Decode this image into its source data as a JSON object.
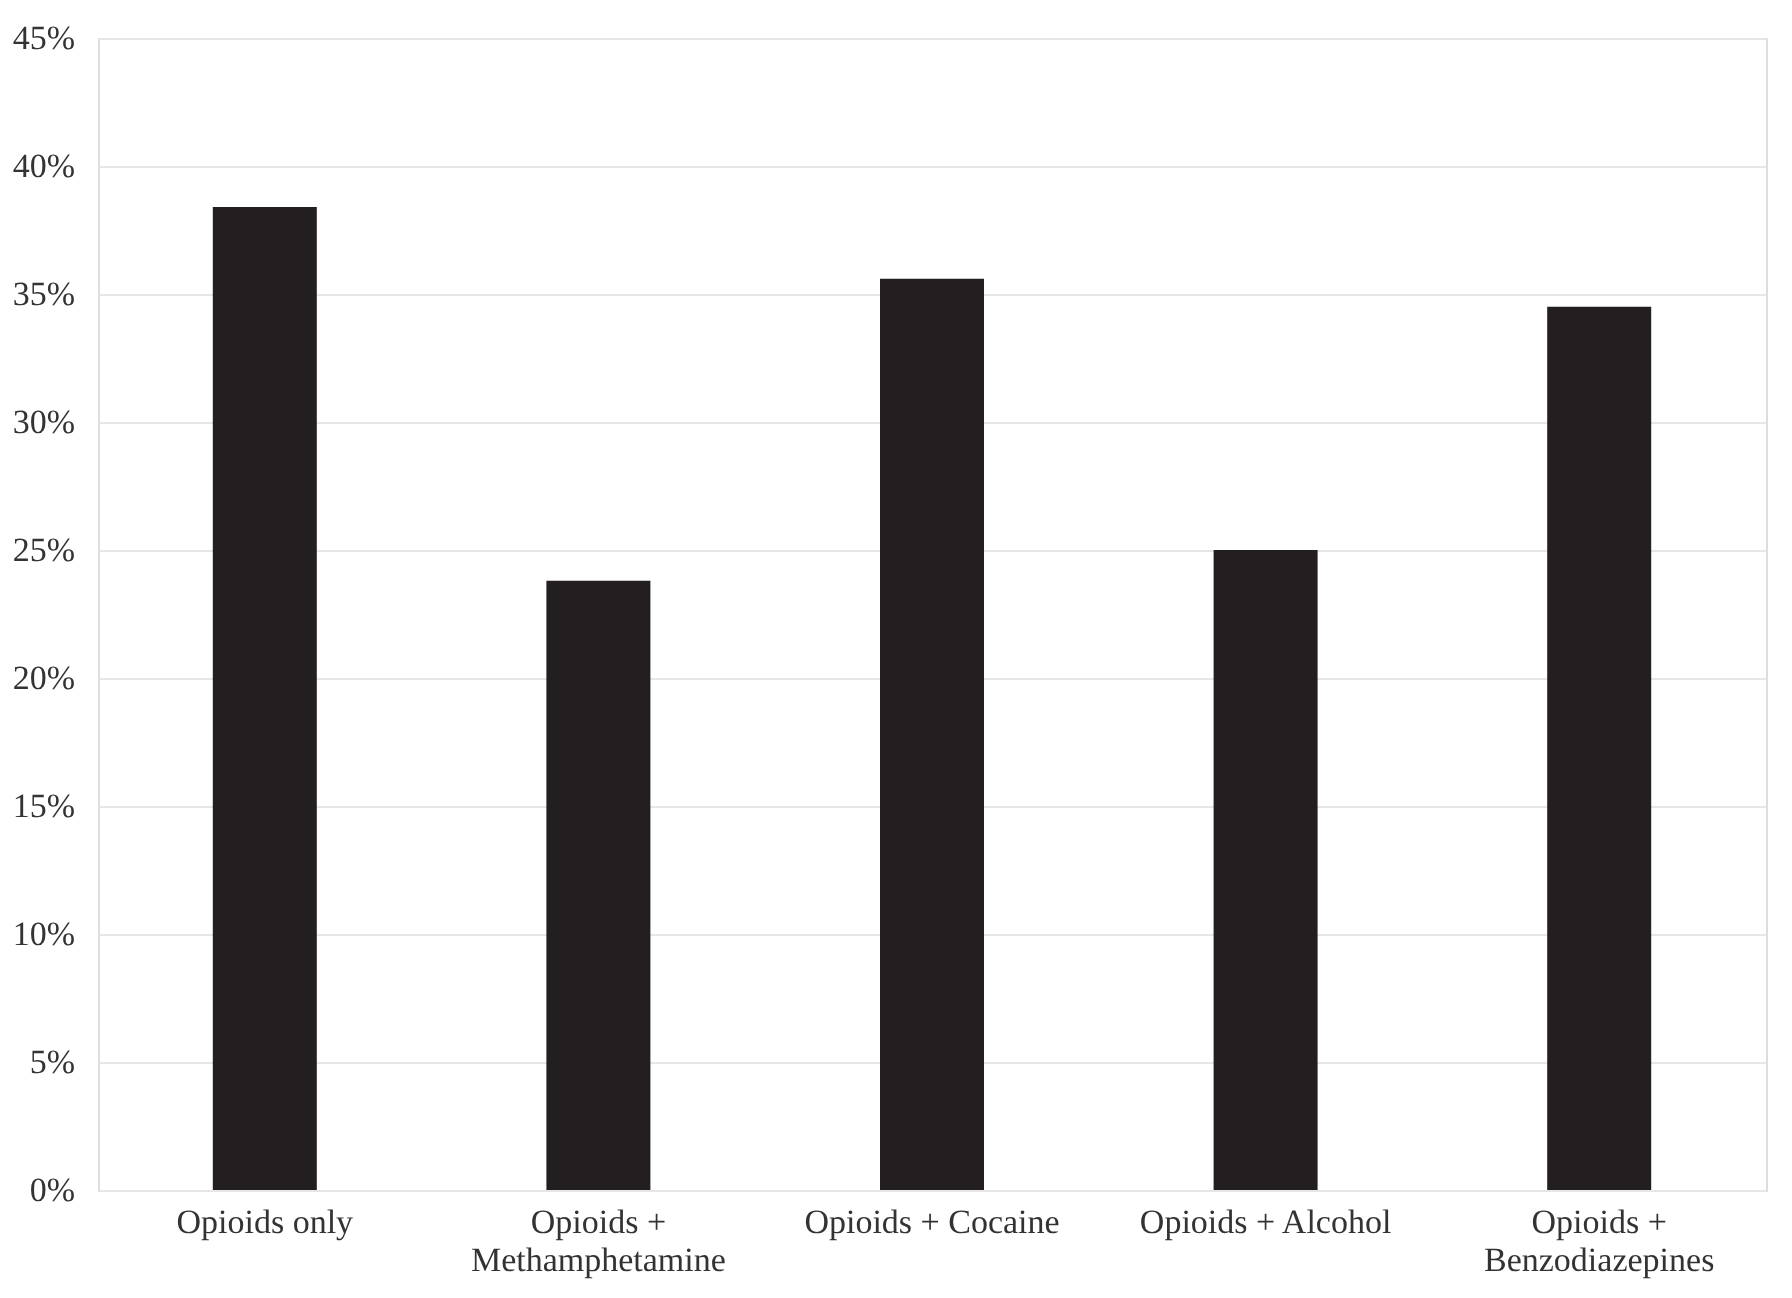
{
  "chart_data": {
    "type": "bar",
    "categories": [
      "Opioids only",
      "Opioids + Methamphetamine",
      "Opioids + Cocaine",
      "Opioids + Alcohol",
      "Opioids + Benzodiazepines"
    ],
    "values": [
      38.4,
      23.8,
      35.6,
      25.0,
      34.5
    ],
    "color": "#231f20",
    "ylim": [
      0,
      45
    ],
    "yticks": [
      {
        "value": 0,
        "label": "0%"
      },
      {
        "value": 5,
        "label": "5%"
      },
      {
        "value": 10,
        "label": "10%"
      },
      {
        "value": 15,
        "label": "15%"
      },
      {
        "value": 20,
        "label": "20%"
      },
      {
        "value": 25,
        "label": "25%"
      },
      {
        "value": 30,
        "label": "30%"
      },
      {
        "value": 35,
        "label": "35%"
      },
      {
        "value": 40,
        "label": "40%"
      },
      {
        "value": 45,
        "label": "45%"
      }
    ],
    "grid": "y"
  }
}
